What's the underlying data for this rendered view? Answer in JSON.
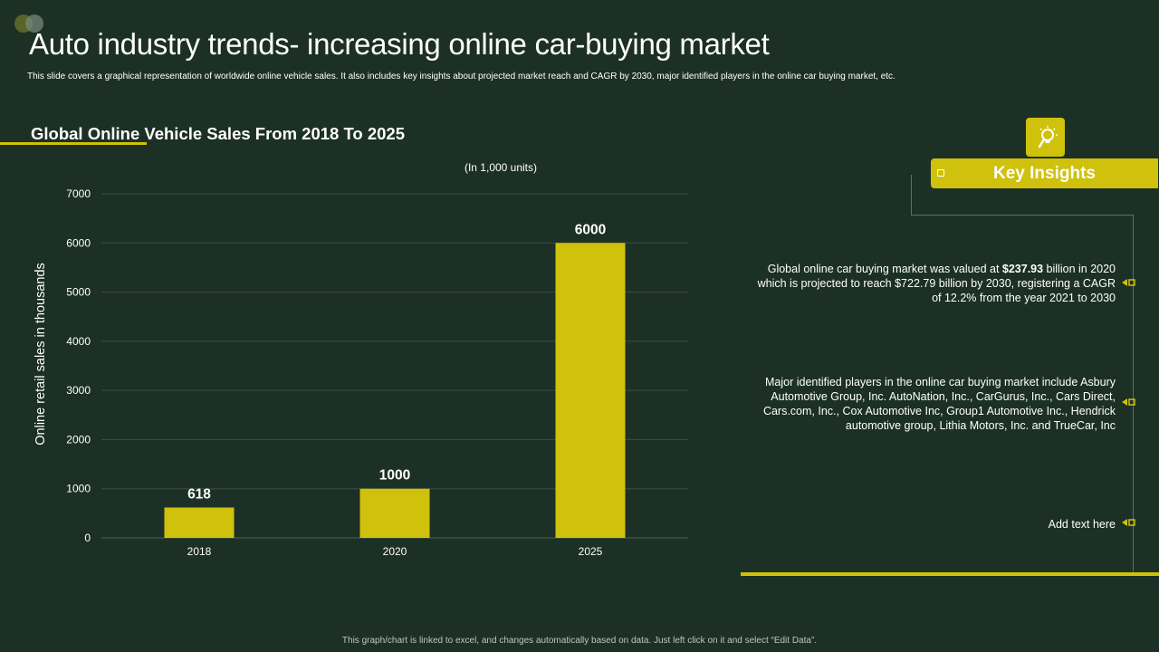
{
  "header": {
    "title": "Auto industry trends- increasing online car-buying market",
    "subtitle": "This slide covers a graphical representation of worldwide online vehicle sales. It also includes key insights about projected market reach and CAGR by 2030, major identified players in the online car buying market, etc."
  },
  "chart_section": {
    "heading": "Global Online Vehicle Sales From 2018 To 2025",
    "units_note": "(In 1,000 units)"
  },
  "chart_data": {
    "type": "bar",
    "title": "Global Online Vehicle Sales From 2018 To 2025",
    "subtitle": "(In 1,000 units)",
    "categories": [
      "2018",
      "2020",
      "2025"
    ],
    "values": [
      618,
      1000,
      6000
    ],
    "data_labels": [
      "618",
      "1000",
      "6000"
    ],
    "xlabel": "",
    "ylabel": "Online retail sales in thousands",
    "ylim": [
      0,
      7000
    ],
    "yticks": [
      0,
      1000,
      2000,
      3000,
      4000,
      5000,
      6000,
      7000
    ],
    "ytick_labels": [
      "0",
      "1000",
      "2000",
      "3000",
      "4000",
      "5000",
      "6000",
      "7000"
    ],
    "grid": true,
    "legend": "none"
  },
  "insights": {
    "title": "Key Insights",
    "items": [
      {
        "pre": "Global online car buying market was valued  at ",
        "bold": "$237.93",
        "post": " billion in 2020 which is projected to reach $722.79 billion by 2030, registering a CAGR of 12.2% from the year 2021 to 2030"
      },
      {
        "text": "Major identified players in the online car buying market include Asbury Automotive Group, Inc. AutoNation, Inc., CarGurus, Inc., Cars Direct, Cars.com, Inc., Cox Automotive Inc, Group1 Automotive Inc., Hendrick automotive group, Lithia Motors, Inc. and TrueCar, Inc"
      },
      {
        "text": "Add text here"
      }
    ]
  },
  "footer": {
    "note": "This graph/chart is linked to excel, and changes automatically based on data. Just left click on it and select “Edit Data”."
  },
  "colors": {
    "background": "#1c3025",
    "accent": "#cfc10c",
    "grid": "#3a4d40"
  }
}
